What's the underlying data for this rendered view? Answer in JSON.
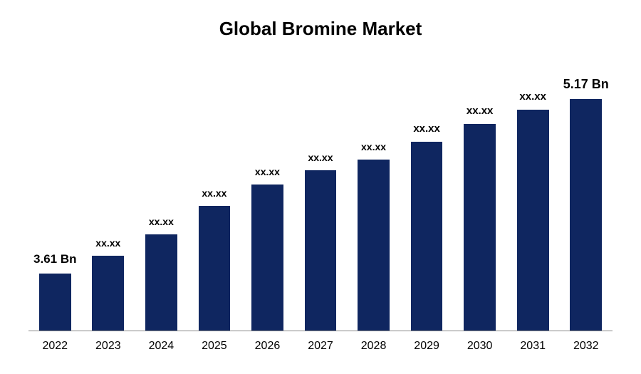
{
  "chart": {
    "type": "bar",
    "title": "Global Bromine Market",
    "title_fontsize": 26,
    "title_color": "#000000",
    "background_color": "#ffffff",
    "bar_color": "#0f2660",
    "axis_color": "#888888",
    "label_fontsize": 15,
    "category_fontsize": 16,
    "label_fontweight": "bold",
    "bars": [
      {
        "category": "2022",
        "label": "3.61 Bn",
        "value": 80,
        "label_fontsize": 17
      },
      {
        "category": "2023",
        "label": "xx.xx",
        "value": 105,
        "label_fontsize": 14
      },
      {
        "category": "2024",
        "label": "xx.xx",
        "value": 135,
        "label_fontsize": 14
      },
      {
        "category": "2025",
        "label": "xx.xx",
        "value": 175,
        "label_fontsize": 14
      },
      {
        "category": "2026",
        "label": "xx.xx",
        "value": 205,
        "label_fontsize": 14
      },
      {
        "category": "2027",
        "label": "xx.xx",
        "value": 225,
        "label_fontsize": 14
      },
      {
        "category": "2028",
        "label": "xx.xx",
        "value": 240,
        "label_fontsize": 14
      },
      {
        "category": "2029",
        "label": "xx.xx",
        "value": 265,
        "label_fontsize": 15
      },
      {
        "category": "2030",
        "label": "xx.xx",
        "value": 290,
        "label_fontsize": 15
      },
      {
        "category": "2031",
        "label": "xx.xx",
        "value": 310,
        "label_fontsize": 15
      },
      {
        "category": "2032",
        "label": "5.17 Bn",
        "value": 325,
        "label_fontsize": 18
      }
    ],
    "chart_area_height": 375,
    "label_gap": 10
  }
}
